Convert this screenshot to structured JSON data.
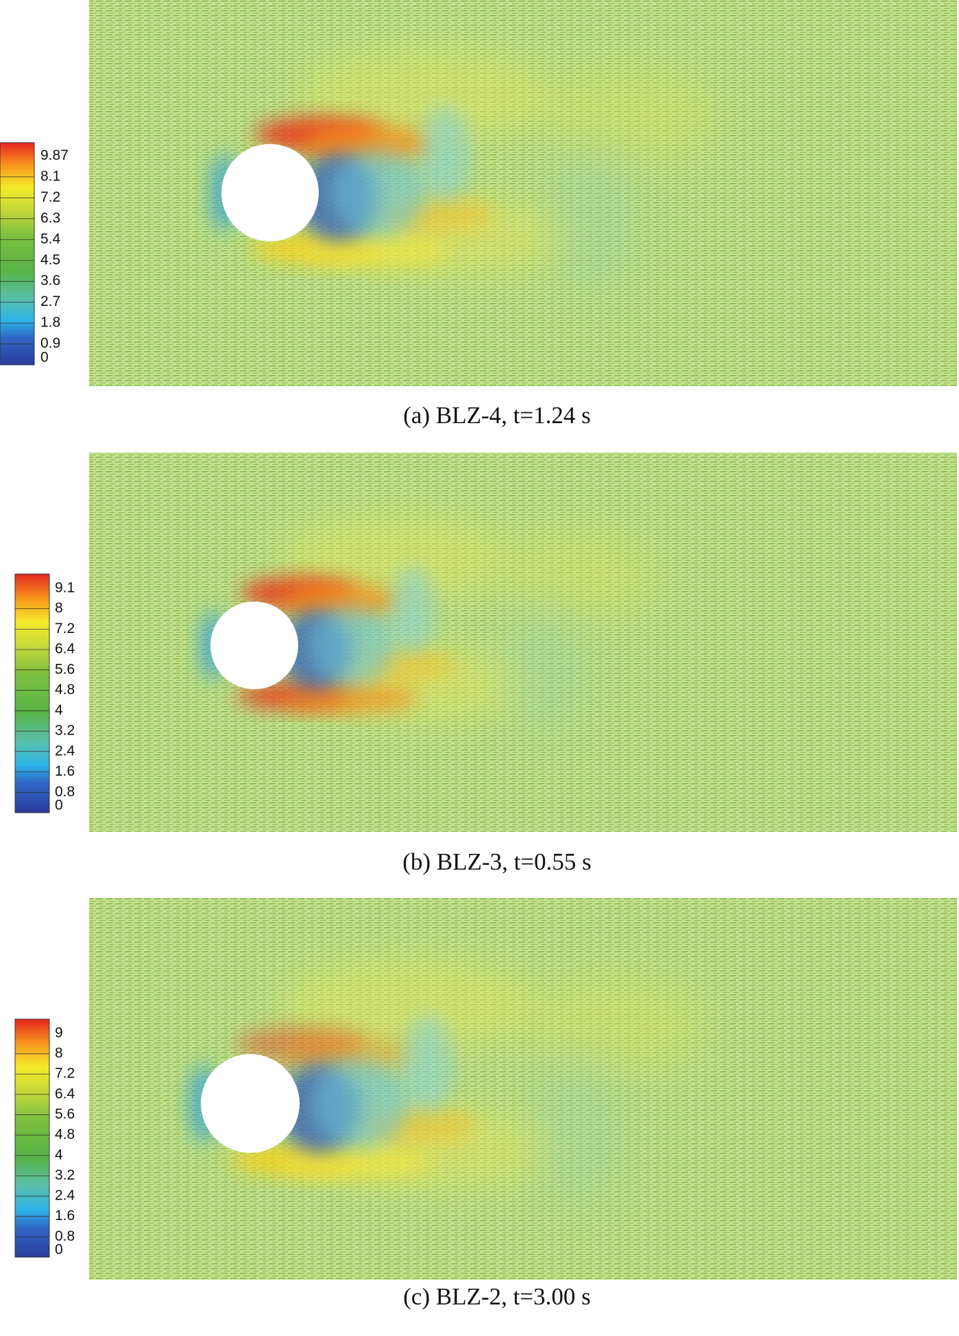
{
  "panels": [
    {
      "colorbar_labels": [
        "9.87",
        "8.1",
        "7.2",
        "6.3",
        "5.4",
        "4.5",
        "3.6",
        "2.7",
        "1.8",
        "0.9",
        "0"
      ],
      "caption": "(a) BLZ-4, t=1.24 s"
    },
    {
      "colorbar_labels": [
        "9.1",
        "8",
        "7.2",
        "6.4",
        "5.6",
        "4.8",
        "4",
        "3.2",
        "2.4",
        "1.6",
        "0.8",
        "0"
      ],
      "caption": "(b) BLZ-3, t=0.55 s"
    },
    {
      "colorbar_labels": [
        "9",
        "8",
        "7.2",
        "6.4",
        "5.6",
        "4.8",
        "4",
        "3.2",
        "2.4",
        "1.6",
        "0.8",
        "0"
      ],
      "caption": "(c) BLZ-2, t=3.00 s"
    }
  ]
}
